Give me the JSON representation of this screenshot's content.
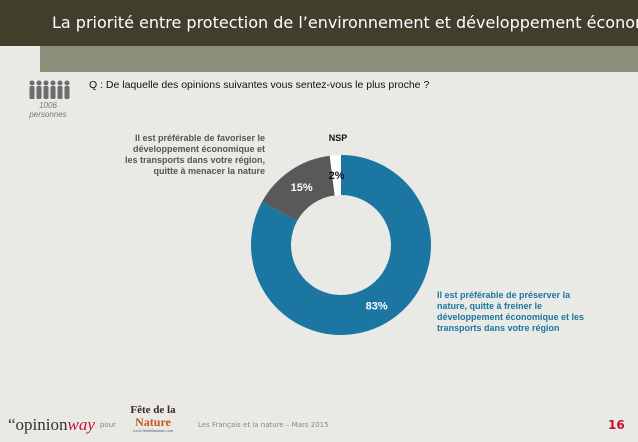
{
  "header": {
    "title": "La priorité entre protection de l’environnement et développement économique"
  },
  "question": "Q : De laquelle des opinions suivantes vous sentez-vous le plus proche ?",
  "sample": {
    "count": "1006",
    "unit": "personnes"
  },
  "chart_data": {
    "type": "pie",
    "donut": true,
    "categories": [
      "Il est préférable de préserver la nature, quitte à freiner le développement économique et les transports dans votre région",
      "Il est préférable de favoriser le développement économique et les transports dans votre région, quitte à menacer la nature",
      "NSP"
    ],
    "values": [
      83,
      15,
      2
    ],
    "value_labels": [
      "83%",
      "15%",
      "2%"
    ],
    "colors": [
      "#1b77a1",
      "#595959",
      "#ffffff"
    ]
  },
  "footer": {
    "brand": [
      "“opinion",
      "way"
    ],
    "for": "pour",
    "logo": [
      "Fête de la",
      "Nature"
    ],
    "logo_url": "www.fetedelanature.com",
    "source": "Les Français et la nature – Mars 2015",
    "page": "16"
  }
}
